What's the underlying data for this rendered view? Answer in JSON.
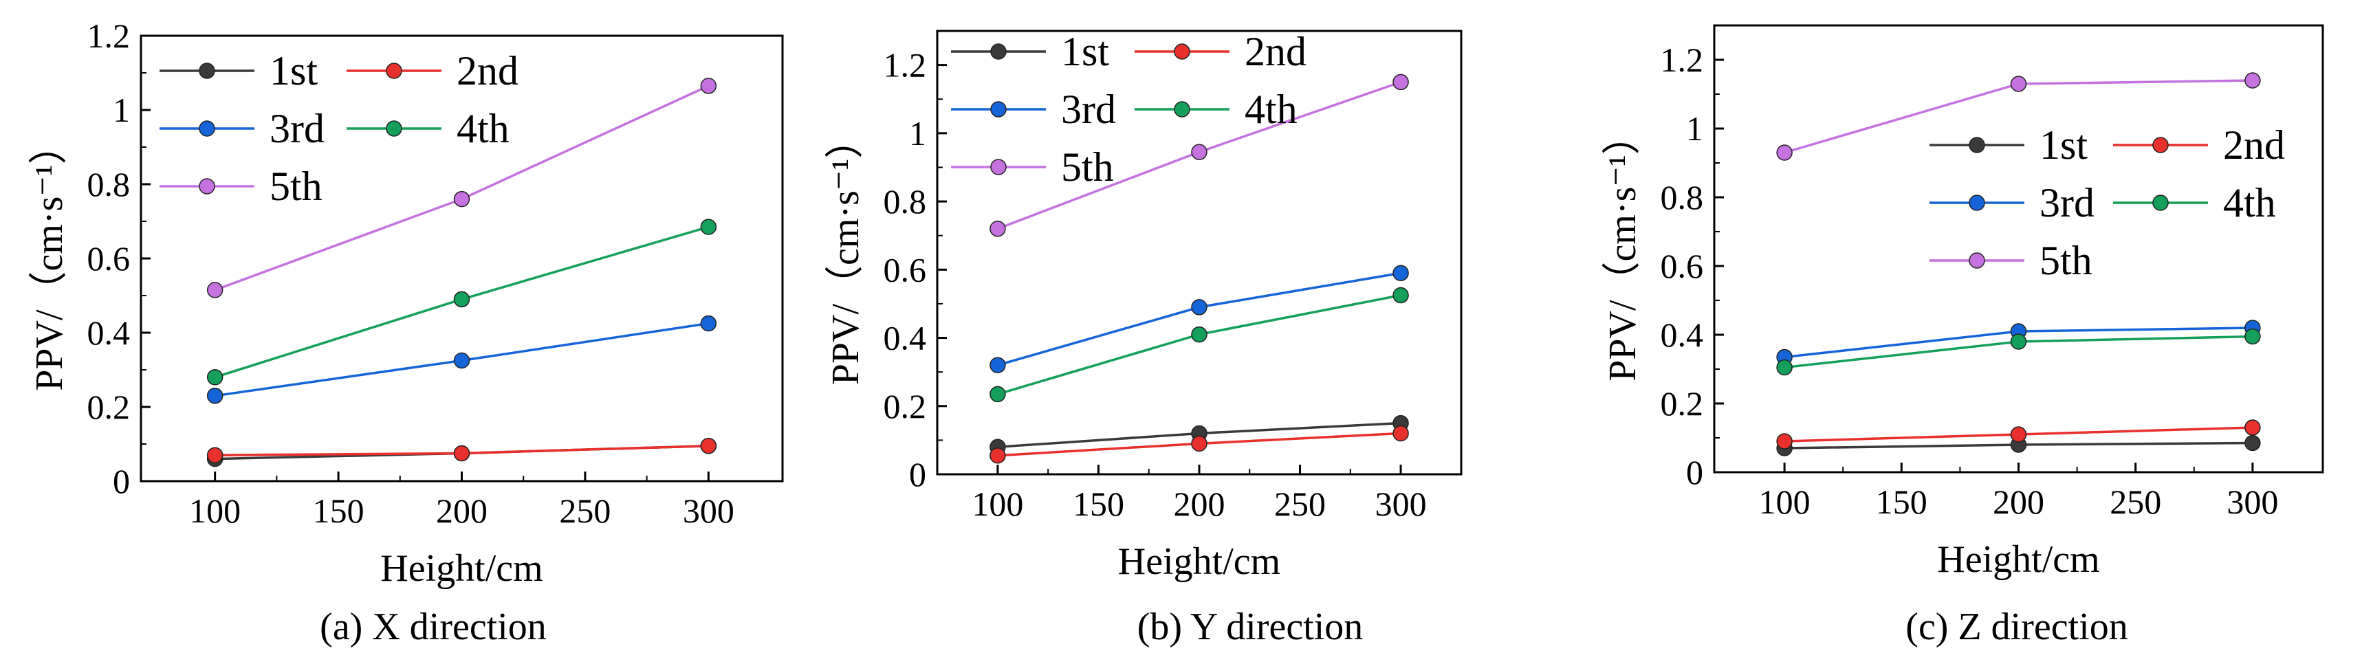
{
  "figure": {
    "colors": {
      "1st": "#3a3a3a",
      "2nd": "#e8302c",
      "3rd": "#1565d8",
      "4th": "#14a05a",
      "5th": "#c572e0"
    }
  },
  "chart_data": [
    {
      "type": "line",
      "caption": "(a) X direction",
      "xlabel": "Height/cm",
      "ylabel": "PPV/（cm·s⁻¹）",
      "x": [
        100,
        200,
        300
      ],
      "xlim": [
        70,
        330
      ],
      "ylim": [
        0,
        1.2
      ],
      "x_ticks": [
        100,
        150,
        200,
        250,
        300
      ],
      "x_tick_labels": [
        "100",
        "150",
        "200",
        "250",
        "300"
      ],
      "y_ticks": [
        0,
        0.2,
        0.4,
        0.6,
        0.8,
        1,
        1.2
      ],
      "y_tick_labels": [
        "0",
        "0.2",
        "0.4",
        "0.6",
        "0.8",
        "1",
        "1.2"
      ],
      "legend_position": "top-left",
      "series": [
        {
          "name": "1st",
          "values": [
            0.06,
            0.075,
            0.095
          ]
        },
        {
          "name": "2nd",
          "values": [
            0.07,
            0.075,
            0.095
          ]
        },
        {
          "name": "3rd",
          "values": [
            0.23,
            0.325,
            0.425
          ]
        },
        {
          "name": "4th",
          "values": [
            0.28,
            0.49,
            0.685
          ]
        },
        {
          "name": "5th",
          "values": [
            0.515,
            0.76,
            1.065
          ]
        }
      ]
    },
    {
      "type": "line",
      "caption": "(b) Y direction",
      "xlabel": "Height/cm",
      "ylabel": "PPV/（cm·s⁻¹）",
      "x": [
        100,
        200,
        300
      ],
      "xlim": [
        70,
        330
      ],
      "ylim": [
        0,
        1.3
      ],
      "x_ticks": [
        100,
        150,
        200,
        250,
        300
      ],
      "x_tick_labels": [
        "100",
        "150",
        "200",
        "250",
        "300"
      ],
      "y_ticks": [
        0,
        0.2,
        0.4,
        0.6,
        0.8,
        1,
        1.2
      ],
      "y_tick_labels": [
        "0",
        "0.2",
        "0.4",
        "0.6",
        "0.8",
        "1",
        "1.2"
      ],
      "legend_position": "top-left",
      "series": [
        {
          "name": "1st",
          "values": [
            0.08,
            0.12,
            0.15
          ]
        },
        {
          "name": "2nd",
          "values": [
            0.055,
            0.09,
            0.12
          ]
        },
        {
          "name": "3rd",
          "values": [
            0.32,
            0.49,
            0.59
          ]
        },
        {
          "name": "4th",
          "values": [
            0.235,
            0.41,
            0.525
          ]
        },
        {
          "name": "5th",
          "values": [
            0.72,
            0.945,
            1.15
          ]
        }
      ]
    },
    {
      "type": "line",
      "caption": "(c) Z direction",
      "xlabel": "Height/cm",
      "ylabel": "PPV/（cm·s⁻¹）",
      "x": [
        100,
        200,
        300
      ],
      "xlim": [
        70,
        330
      ],
      "ylim": [
        0,
        1.3
      ],
      "x_ticks": [
        100,
        150,
        200,
        250,
        300
      ],
      "x_tick_labels": [
        "100",
        "150",
        "200",
        "250",
        "300"
      ],
      "y_ticks": [
        0,
        0.2,
        0.4,
        0.6,
        0.8,
        1,
        1.2
      ],
      "y_tick_labels": [
        "0",
        "0.2",
        "0.4",
        "0.6",
        "0.8",
        "1",
        "1.2"
      ],
      "legend_position": "center-right",
      "series": [
        {
          "name": "1st",
          "values": [
            0.07,
            0.08,
            0.085
          ]
        },
        {
          "name": "2nd",
          "values": [
            0.09,
            0.11,
            0.13
          ]
        },
        {
          "name": "3rd",
          "values": [
            0.335,
            0.41,
            0.42
          ]
        },
        {
          "name": "4th",
          "values": [
            0.305,
            0.38,
            0.395
          ]
        },
        {
          "name": "5th",
          "values": [
            0.93,
            1.13,
            1.14
          ]
        }
      ]
    }
  ]
}
